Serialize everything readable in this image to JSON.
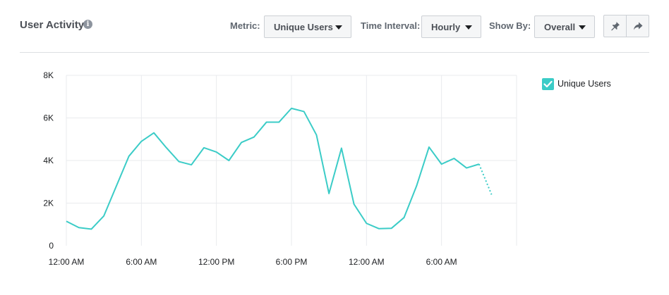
{
  "header": {
    "title": "User Activity",
    "info_icon": "info-icon",
    "controls": {
      "metric": {
        "label": "Metric:",
        "value": "Unique Users"
      },
      "time_interval": {
        "label": "Time Interval:",
        "value": "Hourly"
      },
      "show_by": {
        "label": "Show By:",
        "value": "Overall"
      }
    },
    "actions": [
      {
        "icon": "pin-icon"
      },
      {
        "icon": "share-icon"
      }
    ]
  },
  "legend": {
    "label": "Unique Users",
    "color": "#3bccc7",
    "checked": true
  },
  "chart_data": {
    "type": "line",
    "x_labels": [
      "12:00 AM",
      "6:00 AM",
      "12:00 PM",
      "6:00 PM",
      "12:00 AM",
      "6:00 AM"
    ],
    "y_ticks": [
      0,
      2000,
      4000,
      6000,
      8000
    ],
    "y_tick_labels": [
      "0",
      "2K",
      "4K",
      "6K",
      "8K"
    ],
    "ylim": [
      0,
      8000
    ],
    "grid": true,
    "legend_position": "top-right",
    "series": [
      {
        "name": "Unique Users",
        "color": "#3bccc7",
        "x_hours": [
          0,
          1,
          2,
          3,
          4,
          5,
          6,
          7,
          8,
          9,
          10,
          11,
          12,
          13,
          14,
          15,
          16,
          17,
          18,
          19,
          20,
          21,
          22,
          23,
          24,
          25,
          26,
          27,
          28,
          29,
          30,
          31,
          32,
          33,
          34
        ],
        "values": [
          1150,
          850,
          780,
          1400,
          2800,
          4200,
          4900,
          5300,
          4600,
          3950,
          3800,
          4600,
          4400,
          4000,
          4850,
          5100,
          5800,
          5800,
          6450,
          6300,
          5200,
          2450,
          4580,
          1950,
          1050,
          800,
          820,
          1320,
          2800,
          4630,
          3830,
          4100,
          3650,
          3830,
          2400
        ],
        "projected_from_index": 33
      }
    ]
  }
}
